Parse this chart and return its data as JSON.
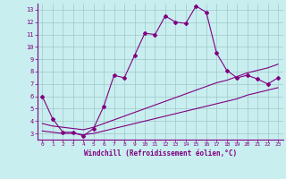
{
  "xlabel": "Windchill (Refroidissement éolien,°C)",
  "bg_color": "#c8eef0",
  "line_color": "#800080",
  "grid_color": "#a0c8c8",
  "x_data": [
    0,
    1,
    2,
    3,
    4,
    5,
    6,
    7,
    8,
    9,
    10,
    11,
    12,
    13,
    14,
    15,
    16,
    17,
    18,
    19,
    20,
    21,
    22,
    23
  ],
  "y_main": [
    6.0,
    4.2,
    3.1,
    3.1,
    2.8,
    3.4,
    5.2,
    7.7,
    7.5,
    9.3,
    11.1,
    11.0,
    12.5,
    12.0,
    11.9,
    13.3,
    12.8,
    9.5,
    8.1,
    7.5,
    7.7,
    7.4,
    7.0,
    7.5
  ],
  "y_lower": [
    3.2,
    3.1,
    3.0,
    3.0,
    2.9,
    3.0,
    3.2,
    3.4,
    3.6,
    3.8,
    4.0,
    4.2,
    4.4,
    4.6,
    4.8,
    5.0,
    5.2,
    5.4,
    5.6,
    5.8,
    6.1,
    6.3,
    6.5,
    6.7
  ],
  "y_upper": [
    3.8,
    3.6,
    3.5,
    3.4,
    3.3,
    3.5,
    3.8,
    4.1,
    4.4,
    4.7,
    5.0,
    5.3,
    5.6,
    5.9,
    6.2,
    6.5,
    6.8,
    7.1,
    7.3,
    7.6,
    7.9,
    8.1,
    8.3,
    8.6
  ],
  "xlim": [
    -0.5,
    23.5
  ],
  "ylim": [
    2.5,
    13.5
  ],
  "yticks": [
    3,
    4,
    5,
    6,
    7,
    8,
    9,
    10,
    11,
    12,
    13
  ],
  "xticks": [
    0,
    1,
    2,
    3,
    4,
    5,
    6,
    7,
    8,
    9,
    10,
    11,
    12,
    13,
    14,
    15,
    16,
    17,
    18,
    19,
    20,
    21,
    22,
    23
  ]
}
